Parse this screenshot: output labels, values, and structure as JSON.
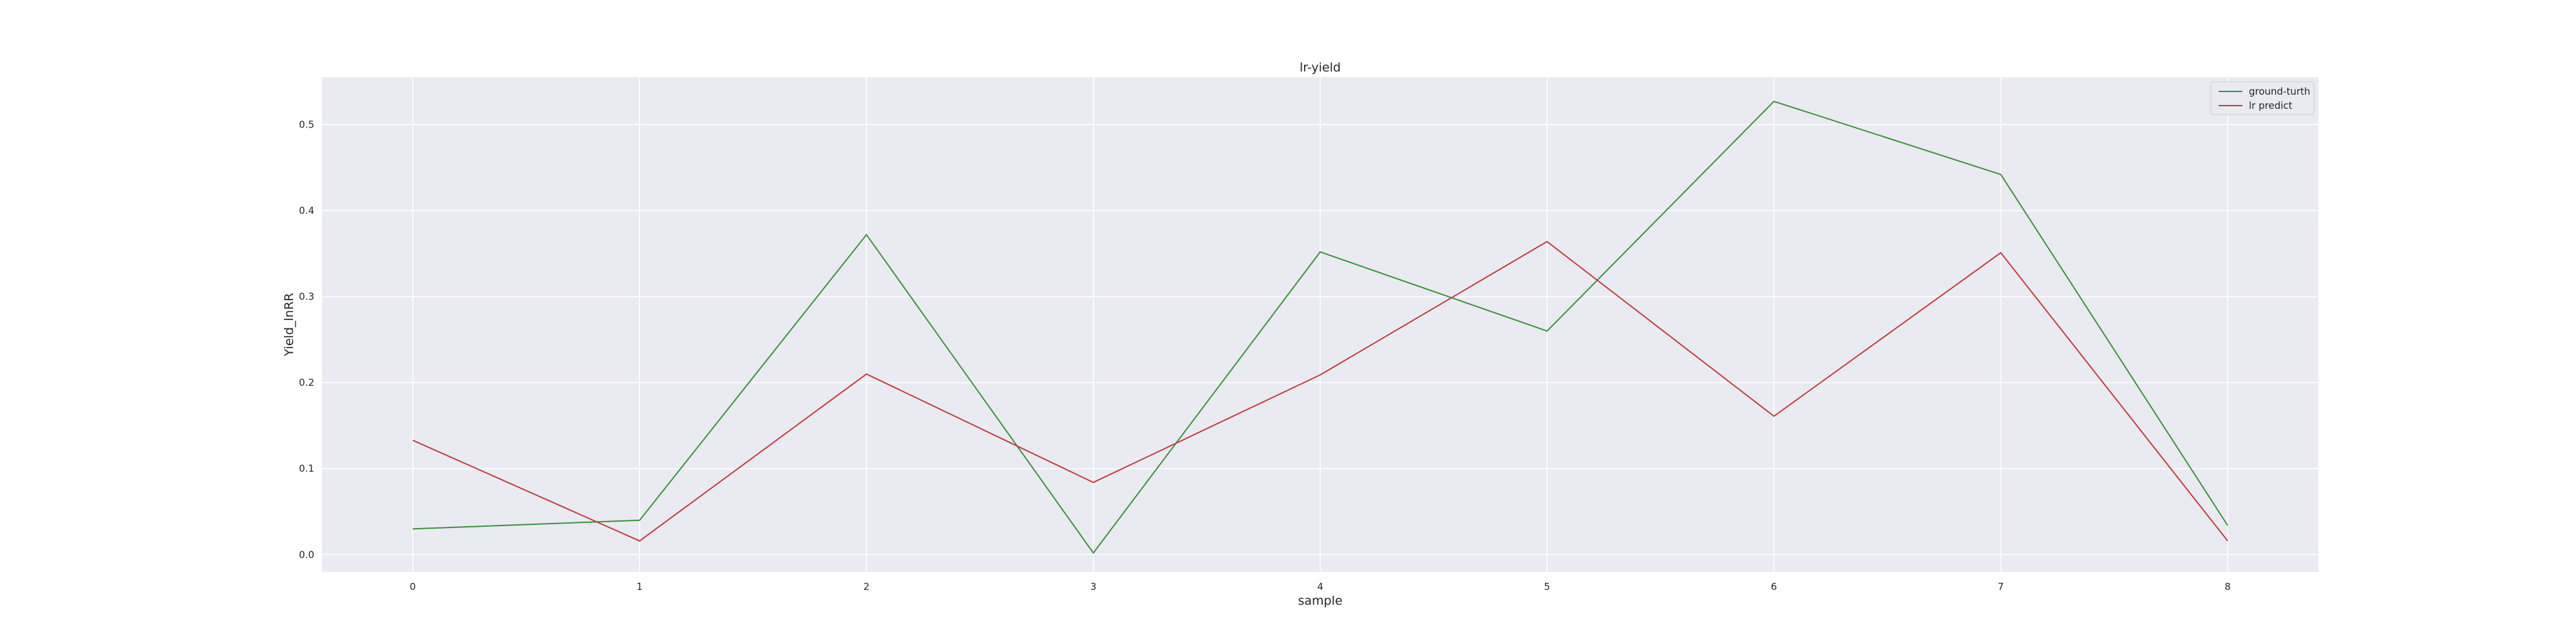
{
  "chart_data": {
    "type": "line",
    "title": "lr-yield",
    "xlabel": "sample",
    "ylabel": "Yield_lnRR",
    "x": [
      0,
      1,
      2,
      3,
      4,
      5,
      6,
      7,
      8
    ],
    "xlim": [
      -0.4,
      8.4
    ],
    "ylim": [
      -0.02,
      0.555
    ],
    "xticks": [
      "0",
      "1",
      "2",
      "3",
      "4",
      "5",
      "6",
      "7",
      "8"
    ],
    "yticks": [
      "0.0",
      "0.1",
      "0.2",
      "0.3",
      "0.4",
      "0.5"
    ],
    "grid": true,
    "legend_position": "top-right",
    "series": [
      {
        "name": "ground-turth",
        "color": "#3a923a",
        "values": [
          0.03,
          0.04,
          0.372,
          0.002,
          0.352,
          0.26,
          0.527,
          0.442,
          0.034
        ]
      },
      {
        "name": "lr predict",
        "color": "#c03d3e",
        "values": [
          0.133,
          0.016,
          0.21,
          0.084,
          0.209,
          0.364,
          0.161,
          0.351,
          0.016
        ]
      }
    ]
  }
}
